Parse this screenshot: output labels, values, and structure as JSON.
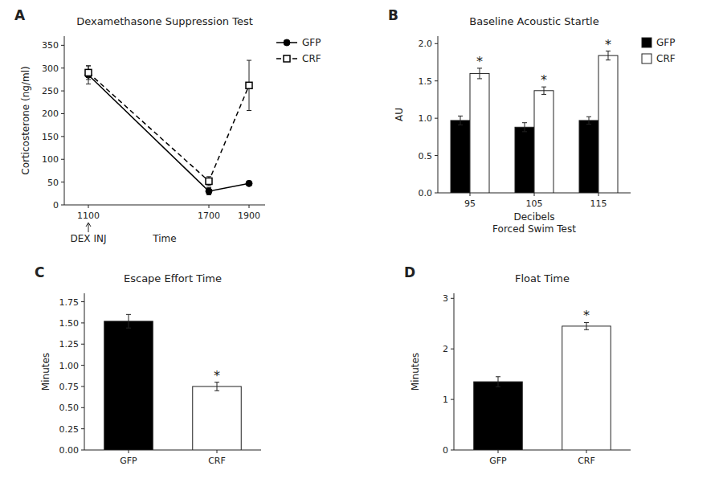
{
  "chart_data": [
    {
      "type": "line",
      "panel_label": "A",
      "title": "Dexamethasone Suppression Test",
      "ylabel": "Corticosterone (ng/ml)",
      "xlabel": "Time",
      "x": [
        1100,
        1700,
        1900
      ],
      "xticks": [
        1100,
        1700,
        1900
      ],
      "xlim": [
        980,
        1980
      ],
      "series": [
        {
          "name": "GFP",
          "color": "black",
          "marker": "circle",
          "line_style": "solid",
          "values": [
            285,
            30,
            47
          ],
          "errors": [
            20,
            8,
            5
          ]
        },
        {
          "name": "CRF",
          "color": "black",
          "marker": "open-square",
          "line_style": "dashed",
          "values": [
            290,
            52,
            262
          ],
          "errors": [
            15,
            10,
            55
          ]
        }
      ],
      "ylim": [
        0,
        370
      ],
      "yticks": [
        0,
        50,
        100,
        150,
        200,
        250,
        300,
        350
      ],
      "annotations": [
        {
          "text": "DEX INJ",
          "x": 1100
        }
      ],
      "legend": "upper right",
      "grid": false
    },
    {
      "type": "bar",
      "panel_label": "B",
      "title": "Baseline Acoustic Startle",
      "ylabel": "AU",
      "xlabel": "Decibels\nForced Swim Test",
      "categories": [
        "95",
        "105",
        "115"
      ],
      "series": [
        {
          "name": "GFP",
          "color": "black",
          "values": [
            0.97,
            0.88,
            0.97
          ],
          "errors": [
            0.06,
            0.06,
            0.05
          ]
        },
        {
          "name": "CRF",
          "color": "white",
          "values": [
            1.6,
            1.37,
            1.84
          ],
          "errors": [
            0.07,
            0.05,
            0.06
          ]
        }
      ],
      "ylim": [
        0,
        2.1
      ],
      "yticks": [
        {
          "value": 0.0,
          "label": "0.0"
        },
        {
          "value": 0.5,
          "label": "0.5"
        },
        {
          "value": 1.0,
          "label": "1.0"
        },
        {
          "value": 1.5,
          "label": "1.5"
        },
        {
          "value": 2.0,
          "label": "2.0"
        }
      ],
      "annotations": [
        {
          "text": "*",
          "category": "95",
          "series": "CRF"
        },
        {
          "text": "*",
          "category": "105",
          "series": "CRF"
        },
        {
          "text": "*",
          "category": "115",
          "series": "CRF"
        }
      ],
      "legend": "upper right",
      "grid": false
    },
    {
      "type": "bar",
      "panel_label": "C",
      "title": "Escape Effort Time",
      "ylabel": "Minutes",
      "categories": [
        "GFP",
        "CRF"
      ],
      "values": [
        1.52,
        0.75
      ],
      "errors": [
        0.08,
        0.05
      ],
      "colors": [
        "black",
        "white"
      ],
      "ylim": [
        0,
        1.85
      ],
      "yticks": [
        {
          "value": 0.0,
          "label": "0.00"
        },
        {
          "value": 0.25,
          "label": "0.25"
        },
        {
          "value": 0.5,
          "label": "0.50"
        },
        {
          "value": 0.75,
          "label": "0.75"
        },
        {
          "value": 1.0,
          "label": "1.00"
        },
        {
          "value": 1.25,
          "label": "1.25"
        },
        {
          "value": 1.5,
          "label": "1.50"
        },
        {
          "value": 1.75,
          "label": "1.75"
        }
      ],
      "annotations": [
        {
          "text": "*",
          "category": "CRF"
        }
      ],
      "grid": false
    },
    {
      "type": "bar",
      "panel_label": "D",
      "title": "Float Time",
      "ylabel": "Minutes",
      "categories": [
        "GFP",
        "CRF"
      ],
      "values": [
        1.35,
        2.45
      ],
      "errors": [
        0.1,
        0.07
      ],
      "colors": [
        "black",
        "white"
      ],
      "ylim": [
        0,
        3.1
      ],
      "yticks": [
        0,
        1,
        2,
        3
      ],
      "annotations": [
        {
          "text": "*",
          "category": "CRF"
        }
      ],
      "grid": false
    }
  ]
}
